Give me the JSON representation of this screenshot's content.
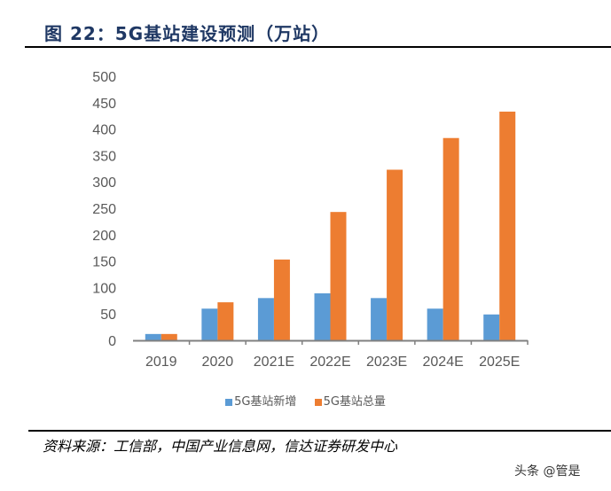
{
  "title": "图 22：5G基站建设预测（万站）",
  "chart_data": {
    "type": "bar",
    "title": "图 22：5G基站建设预测（万站）",
    "categories": [
      "2019",
      "2020",
      "2021E",
      "2022E",
      "2023E",
      "2024E",
      "2025E"
    ],
    "series": [
      {
        "name": "5G基站新增",
        "color": "#5b9bd5",
        "values": [
          12,
          60,
          80,
          89,
          80,
          60,
          49
        ]
      },
      {
        "name": "5G基站总量",
        "color": "#ed7d31",
        "values": [
          12,
          72,
          153,
          243,
          323,
          383,
          433
        ]
      }
    ],
    "ylim": [
      0,
      500
    ],
    "yticks": [
      "0",
      "50",
      "100",
      "150",
      "200",
      "250",
      "300",
      "350",
      "400",
      "450",
      "500"
    ],
    "grid": false,
    "legend": "bottom"
  },
  "source": "资料来源：工信部，中国产业信息网，信达证券研发中心",
  "watermark": "头条 @管是"
}
